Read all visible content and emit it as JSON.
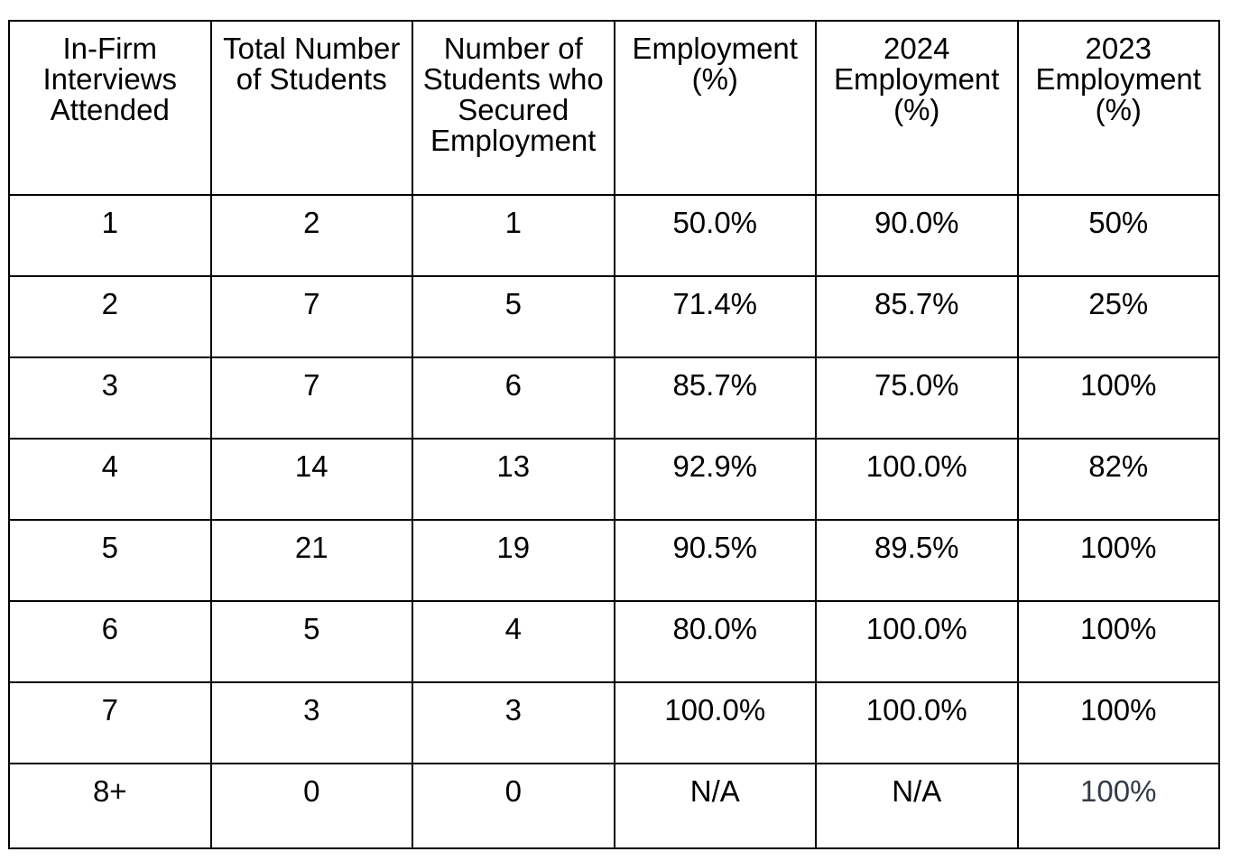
{
  "table": {
    "columns": [
      "In-Firm\nInterviews\nAttended",
      "Total Number\nof Students",
      "Number of\nStudents who\nSecured\nEmployment",
      "Employment\n(%)",
      "2024\nEmployment\n(%)",
      "2023\nEmployment\n(%)"
    ],
    "rows": [
      [
        "1",
        "2",
        "1",
        "50.0%",
        "90.0%",
        "50%"
      ],
      [
        "2",
        "7",
        "5",
        "71.4%",
        "85.7%",
        "25%"
      ],
      [
        "3",
        "7",
        "6",
        "85.7%",
        "75.0%",
        "100%"
      ],
      [
        "4",
        "14",
        "13",
        "92.9%",
        "100.0%",
        "82%"
      ],
      [
        "5",
        "21",
        "19",
        "90.5%",
        "89.5%",
        "100%"
      ],
      [
        "6",
        "5",
        "4",
        "80.0%",
        "100.0%",
        "100%"
      ],
      [
        "7",
        "3",
        "3",
        "100.0%",
        "100.0%",
        "100%"
      ],
      [
        "8+",
        "0",
        "0",
        "N/A",
        "N/A",
        "100%"
      ]
    ],
    "special_cell": {
      "row": 7,
      "col": 5,
      "color": "#333b47"
    }
  },
  "colors": {
    "background": "#ffffff",
    "border": "#000000",
    "text": "#000000"
  }
}
